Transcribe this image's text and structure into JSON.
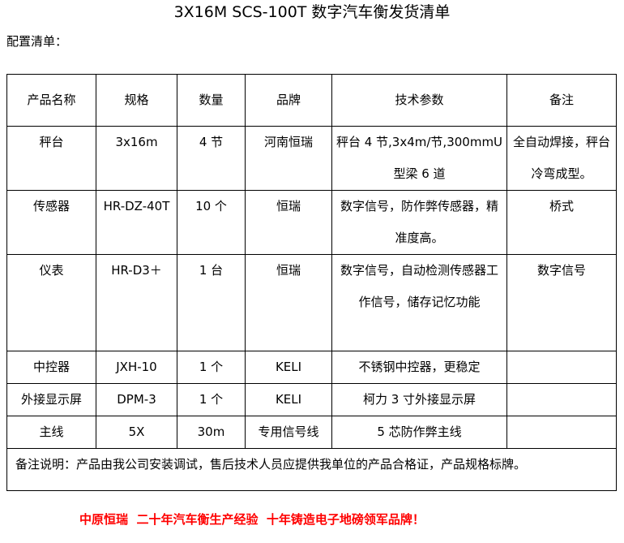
{
  "title": "3X16M SCS-100T 数字汽车衡发货清单",
  "subtitle": "配置清单：",
  "table": {
    "headers": [
      "产品名称",
      "规格",
      "数量",
      "品牌",
      "技术参数",
      "备注"
    ],
    "rows": [
      [
        "秤台",
        "3x16m",
        "4 节",
        "河南恒瑞",
        "秤台 4 节,3x4m/节,300mmU型梁 6 道",
        "全自动焊接，秤台冷弯成型。"
      ],
      [
        "传感器",
        "HR-DZ-40T",
        "10 个",
        "恒瑞",
        "数字信号，防作弊传感器，精准度高。",
        "桥式"
      ],
      [
        "仪表",
        "HR-D3＋",
        "1 台",
        "恒瑞",
        "数字信号，自动检测传感器工作信号，储存记忆功能",
        "数字信号"
      ],
      [
        "中控器",
        "JXH-10",
        "1 个",
        "KELI",
        "不锈钢中控器，更稳定",
        ""
      ],
      [
        "外接显示屏",
        "DPM-3",
        "1 个",
        "KELI",
        "柯力 3 寸外接显示屏",
        ""
      ],
      [
        "主线",
        "5X",
        "30m",
        "专用信号线",
        "5 芯防作弊主线",
        ""
      ]
    ],
    "note": "备注说明：产品由我公司安装调试，售后技术人员应提供我单位的产品合格证，产品规格标牌。"
  },
  "footer": "中原恒瑞  二十年汽车衡生产经验  十年铸造电子地磅领军品牌！",
  "colors": {
    "footer": "#ff0000",
    "border": "#000000"
  }
}
